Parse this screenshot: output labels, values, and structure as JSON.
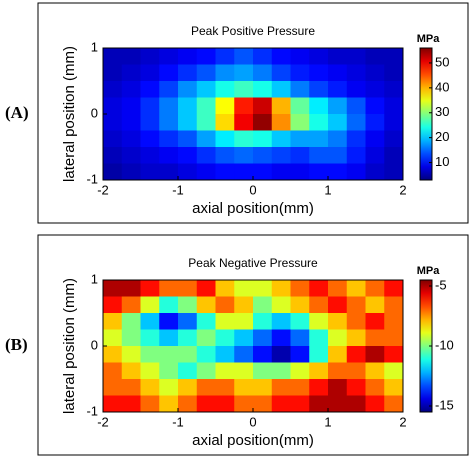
{
  "chart_data": [
    {
      "type": "heatmap",
      "panel_label": "(A)",
      "title": "Peak Positive Pressure",
      "xlabel": "axial position(mm)",
      "ylabel": "lateral position (mm)",
      "colorbar_label": "MPa",
      "x": [
        -1.875,
        -1.625,
        -1.375,
        -1.125,
        -0.875,
        -0.625,
        -0.375,
        -0.125,
        0.125,
        0.375,
        0.625,
        0.875,
        1.125,
        1.375,
        1.625,
        1.875
      ],
      "y": [
        0.875,
        0.625,
        0.375,
        0.125,
        -0.125,
        -0.375,
        -0.625,
        -0.875
      ],
      "z": [
        [
          6,
          6,
          7,
          8,
          9,
          10,
          12,
          14,
          12,
          10,
          9,
          8,
          7,
          7,
          6,
          6
        ],
        [
          6,
          7,
          8,
          10,
          12,
          14,
          17,
          18,
          16,
          13,
          11,
          10,
          9,
          8,
          7,
          6
        ],
        [
          7,
          8,
          10,
          13,
          17,
          20,
          24,
          26,
          24,
          20,
          16,
          13,
          11,
          9,
          8,
          7
        ],
        [
          8,
          9,
          12,
          16,
          20,
          26,
          36,
          48,
          52,
          40,
          28,
          22,
          18,
          14,
          10,
          8
        ],
        [
          8,
          9,
          12,
          16,
          20,
          26,
          38,
          50,
          55,
          42,
          30,
          24,
          20,
          15,
          11,
          8
        ],
        [
          7,
          8,
          10,
          12,
          14,
          18,
          22,
          25,
          24,
          20,
          18,
          18,
          16,
          12,
          9,
          7
        ],
        [
          6,
          7,
          8,
          9,
          10,
          12,
          14,
          15,
          14,
          13,
          12,
          14,
          14,
          11,
          8,
          6
        ],
        [
          5,
          6,
          7,
          7,
          8,
          9,
          10,
          10,
          10,
          9,
          9,
          10,
          10,
          9,
          7,
          6
        ]
      ],
      "xlim": [
        -2,
        2
      ],
      "ylim": [
        -1,
        1
      ],
      "xticks": [
        -2,
        -1,
        0,
        1,
        2
      ],
      "yticks": [
        -1,
        0,
        1
      ],
      "clim": [
        3,
        56
      ],
      "cticks": [
        10,
        20,
        30,
        40,
        50
      ],
      "colormap": "jet"
    },
    {
      "type": "heatmap",
      "panel_label": "(B)",
      "title": "Peak Negative Pressure",
      "xlabel": "axial position(mm)",
      "ylabel": "lateral position (mm)",
      "colorbar_label": "MPa",
      "x": [
        -1.875,
        -1.625,
        -1.375,
        -1.125,
        -0.875,
        -0.625,
        -0.375,
        -0.125,
        0.125,
        0.375,
        0.625,
        0.875,
        1.125,
        1.375,
        1.625,
        1.875
      ],
      "y": [
        0.875,
        0.625,
        0.375,
        0.125,
        -0.125,
        -0.375,
        -0.625,
        -0.875
      ],
      "z": [
        [
          -5,
          -5,
          -6,
          -7,
          -7,
          -6,
          -8,
          -9,
          -9,
          -8,
          -7,
          -6,
          -7,
          -8,
          -7,
          -6
        ],
        [
          -6,
          -7,
          -9,
          -11,
          -10,
          -8,
          -7,
          -8,
          -10,
          -9,
          -8,
          -7,
          -6,
          -7,
          -8,
          -7
        ],
        [
          -8,
          -10,
          -12,
          -14,
          -13,
          -11,
          -9,
          -9,
          -11,
          -12,
          -11,
          -9,
          -8,
          -7,
          -6,
          -7
        ],
        [
          -9,
          -10,
          -11,
          -12,
          -11,
          -10,
          -11,
          -12,
          -13,
          -14,
          -13,
          -11,
          -9,
          -8,
          -7,
          -7
        ],
        [
          -8,
          -9,
          -10,
          -10,
          -10,
          -11,
          -12,
          -13,
          -14,
          -15,
          -14,
          -11,
          -8,
          -6,
          -5,
          -6
        ],
        [
          -7,
          -8,
          -9,
          -10,
          -11,
          -10,
          -9,
          -9,
          -10,
          -10,
          -9,
          -8,
          -7,
          -7,
          -8,
          -9
        ],
        [
          -7,
          -7,
          -8,
          -9,
          -8,
          -7,
          -7,
          -8,
          -8,
          -7,
          -7,
          -6,
          -5,
          -6,
          -7,
          -8
        ],
        [
          -6,
          -6,
          -7,
          -8,
          -7,
          -6,
          -6,
          -7,
          -7,
          -6,
          -6,
          -5,
          -5,
          -5,
          -6,
          -7
        ]
      ],
      "xlim": [
        -2,
        2
      ],
      "ylim": [
        -1,
        1
      ],
      "xticks": [
        -2,
        -1,
        0,
        1,
        2
      ],
      "yticks": [
        -1,
        0,
        1
      ],
      "clim": [
        -15.5,
        -4.5
      ],
      "cticks": [
        -5,
        -10,
        -15
      ],
      "colormap": "jet"
    }
  ]
}
